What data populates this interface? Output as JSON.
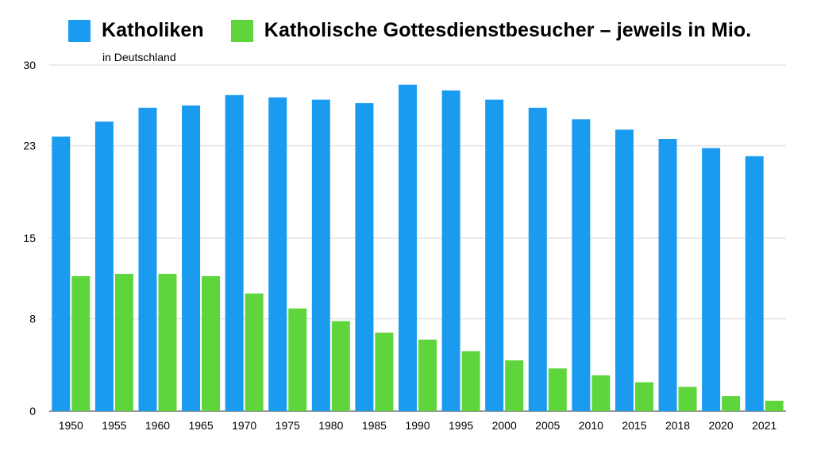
{
  "legend": {
    "items": [
      {
        "label": "Katholiken",
        "color": "#1a9bf0"
      },
      {
        "label": "Katholische Gottesdienstbesucher – jeweils in Mio.",
        "color": "#5fd53c"
      }
    ]
  },
  "subtitle": "in Deutschland",
  "chart_data": {
    "type": "bar",
    "categories": [
      "1950",
      "1955",
      "1960",
      "1965",
      "1970",
      "1975",
      "1980",
      "1985",
      "1990",
      "1995",
      "2000",
      "2005",
      "2010",
      "2015",
      "2018",
      "2020",
      "2021"
    ],
    "series": [
      {
        "name": "Katholiken",
        "color": "#1a9bf0",
        "values": [
          23.8,
          25.1,
          26.3,
          26.5,
          27.4,
          27.2,
          27.0,
          26.7,
          28.3,
          27.8,
          27.0,
          26.3,
          25.3,
          24.4,
          23.6,
          22.8,
          22.1
        ]
      },
      {
        "name": "Katholische Gottesdienstbesucher – jeweils in Mio.",
        "color": "#5fd53c",
        "values": [
          11.7,
          11.9,
          11.9,
          11.7,
          10.2,
          8.9,
          7.8,
          6.8,
          6.2,
          5.2,
          4.4,
          3.7,
          3.1,
          2.5,
          2.1,
          1.3,
          0.9
        ]
      }
    ],
    "yticks": [
      0,
      8,
      15,
      23,
      30
    ],
    "ylim": [
      0,
      30
    ],
    "grid": true,
    "legend_position": "top-left"
  }
}
